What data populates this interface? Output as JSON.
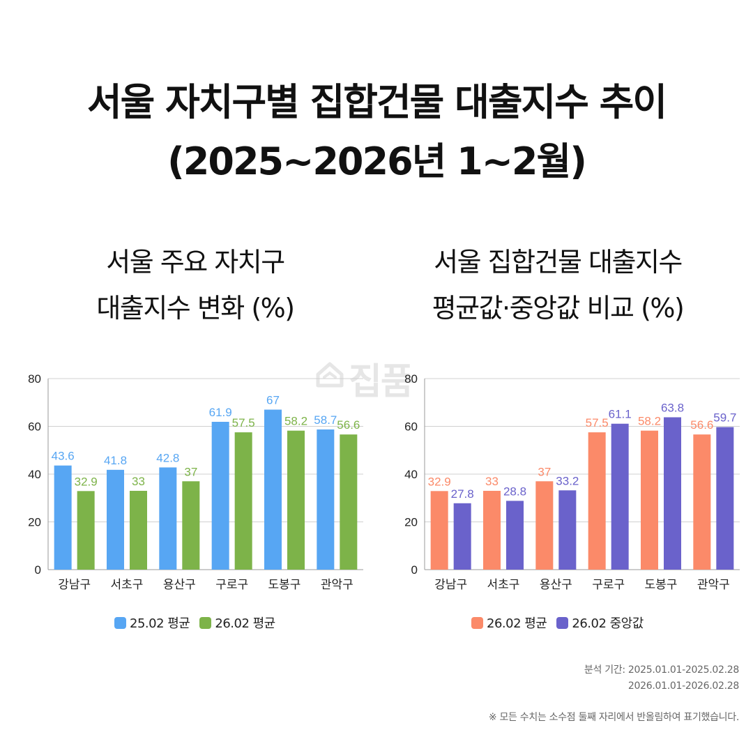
{
  "title": {
    "line1": "서울 자치구별 집합건물 대출지수 추이",
    "line2": "(2025~2026년 1~2월)"
  },
  "watermark": "집품",
  "charts": [
    {
      "title_line1": "서울 주요 자치구",
      "title_line2": "대출지수 변화 (%)"
    },
    {
      "title_line1": "서울 집합건물 대출지수",
      "title_line2": "평균값·중앙값 비교 (%)"
    }
  ],
  "chart_data": [
    {
      "type": "bar",
      "categories": [
        "강남구",
        "서초구",
        "용산구",
        "구로구",
        "도봉구",
        "관악구"
      ],
      "series": [
        {
          "name": "25.02 평균",
          "color": "#57a6f3",
          "values": [
            43.6,
            41.8,
            42.8,
            61.9,
            67,
            58.7
          ]
        },
        {
          "name": "26.02 평균",
          "color": "#7db349",
          "values": [
            32.9,
            33,
            37,
            57.5,
            58.2,
            56.6
          ]
        }
      ],
      "ylim": [
        0,
        80
      ],
      "yticks": [
        0,
        20,
        40,
        60,
        80
      ],
      "grid": true,
      "legend": "bottom"
    },
    {
      "type": "bar",
      "categories": [
        "강남구",
        "서초구",
        "용산구",
        "구로구",
        "도봉구",
        "관악구"
      ],
      "series": [
        {
          "name": "26.02 평균",
          "color": "#fb8a69",
          "values": [
            32.9,
            33,
            37,
            57.5,
            58.2,
            56.6
          ]
        },
        {
          "name": "26.02 중앙값",
          "color": "#6a62cb",
          "values": [
            27.8,
            28.8,
            33.2,
            61.1,
            63.8,
            59.7
          ]
        }
      ],
      "ylim": [
        0,
        80
      ],
      "yticks": [
        0,
        20,
        40,
        60,
        80
      ],
      "grid": true,
      "legend": "bottom"
    }
  ],
  "footnotes": {
    "period_line1": "분석 기간: 2025.01.01-2025.02.28",
    "period_line2": "2026.01.01-2026.02.28",
    "note": "※ 모든 수치는 소수점 둘째 자리에서 반올림하여 표기했습니다."
  }
}
